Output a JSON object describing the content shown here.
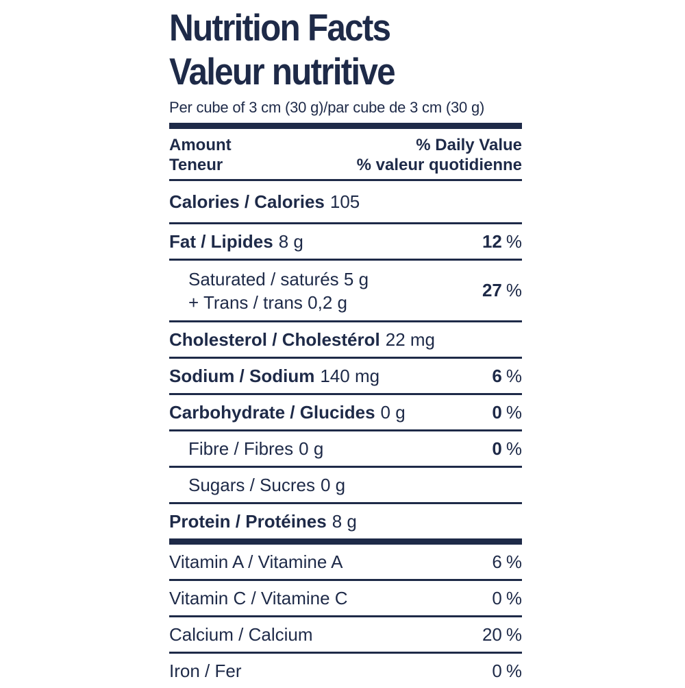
{
  "label": {
    "title_en": "Nutrition Facts",
    "title_fr": "Valeur nutritive",
    "serving": "Per cube of 3 cm (30 g)/par cube de 3 cm (30 g)",
    "percent_sign": "%",
    "colors": {
      "ink": "#1e2a48",
      "background": "#ffffff"
    },
    "header": {
      "amount_en": "Amount",
      "amount_fr": "Teneur",
      "daily_value_en": "% Daily Value",
      "daily_value_fr": "% valeur quotidienne"
    },
    "rows": {
      "calories": {
        "name": "Calories / Calories",
        "value": "105"
      },
      "fat": {
        "name": "Fat / Lipides",
        "value": "8 g",
        "pct": "12"
      },
      "saturated": {
        "line1": "Saturated / saturés 5 g",
        "line2": "+ Trans / trans 0,2 g",
        "pct": "27"
      },
      "cholesterol": {
        "name": "Cholesterol / Cholestérol",
        "value": "22 mg"
      },
      "sodium": {
        "name": "Sodium / Sodium",
        "value": "140 mg",
        "pct": "6"
      },
      "carbohydrate": {
        "name": "Carbohydrate / Glucides",
        "value": "0 g",
        "pct": "0"
      },
      "fibre": {
        "name": "Fibre / Fibres",
        "value": "0 g",
        "pct": "0"
      },
      "sugars": {
        "name": "Sugars / Sucres",
        "value": "0 g"
      },
      "protein": {
        "name": "Protein / Protéines",
        "value": "8 g"
      }
    },
    "micronutrients": {
      "vitamin_a": {
        "name": "Vitamin A / Vitamine A",
        "pct": "6"
      },
      "vitamin_c": {
        "name": "Vitamin C / Vitamine C",
        "pct": "0"
      },
      "calcium": {
        "name": "Calcium / Calcium",
        "pct": "20"
      },
      "iron": {
        "name": "Iron / Fer",
        "pct": "0"
      }
    }
  }
}
